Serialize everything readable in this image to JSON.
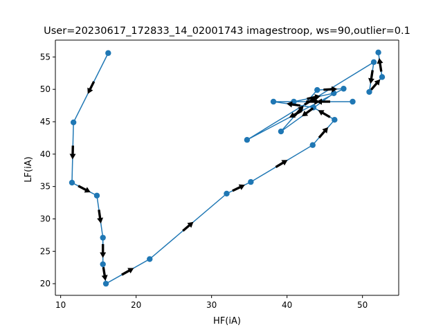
{
  "chart_data": {
    "type": "line",
    "title": "User=20230617_172833_14_02001743 imagestroop, ws=90,outlier=0.1",
    "xlabel": "HF(iA)",
    "ylabel": "LF(iA)",
    "xlim": [
      9.3,
      54.8
    ],
    "ylim": [
      18.2,
      57.6
    ],
    "xticks": [
      10,
      20,
      30,
      40,
      50
    ],
    "yticks": [
      20,
      25,
      30,
      35,
      40,
      45,
      50,
      55
    ],
    "grid": false,
    "legend": "none",
    "series": [
      {
        "color": "#1f77b4",
        "marker": "circle",
        "arrows": true,
        "points": [
          [
            16.3,
            55.6
          ],
          [
            11.7,
            44.9
          ],
          [
            11.5,
            35.6
          ],
          [
            14.8,
            33.6
          ],
          [
            15.6,
            27.1
          ],
          [
            15.6,
            23.0
          ],
          [
            16.0,
            20.0
          ],
          [
            21.8,
            23.8
          ],
          [
            32.0,
            33.9
          ],
          [
            35.2,
            35.7
          ],
          [
            43.4,
            41.4
          ],
          [
            46.3,
            45.3
          ],
          [
            43.5,
            47.2
          ],
          [
            38.2,
            48.1
          ],
          [
            48.7,
            48.1
          ],
          [
            40.9,
            48.1
          ],
          [
            46.2,
            49.4
          ],
          [
            39.2,
            43.5
          ],
          [
            44.0,
            49.9
          ],
          [
            47.5,
            50.1
          ],
          [
            34.7,
            42.2
          ],
          [
            51.5,
            54.2
          ],
          [
            50.9,
            49.6
          ],
          [
            52.6,
            51.9
          ],
          [
            52.1,
            55.7
          ]
        ]
      }
    ]
  }
}
